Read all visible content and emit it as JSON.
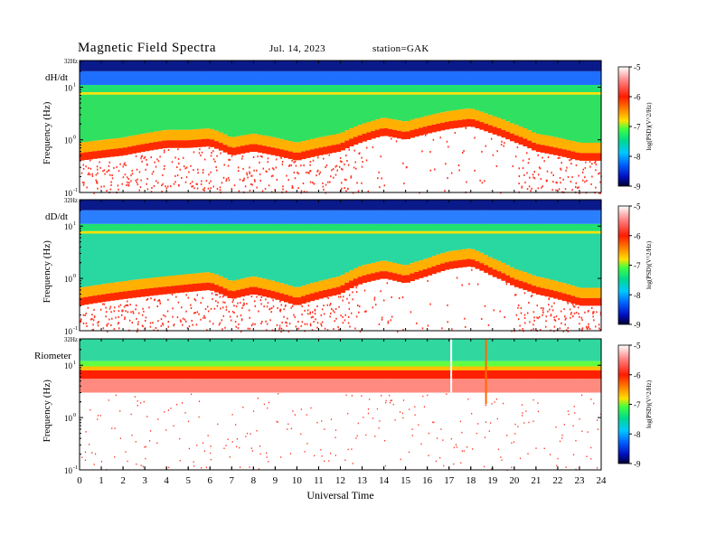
{
  "header": {
    "title": "Magnetic  Field  Spectra",
    "date": "Jul.  14, 2023",
    "station": "station=GAK"
  },
  "chart_data": [
    {
      "type": "heatmap",
      "panel_label": "dH/dt",
      "ylabel": "Frequency  (Hz)",
      "ytick_labels": [
        "32Hz",
        "10",
        "10",
        "10"
      ],
      "ytick_exponents": [
        "",
        "1",
        "0",
        "-1"
      ],
      "x_range": [
        0,
        24
      ],
      "y_range_hz": [
        0.1,
        32
      ],
      "y_scale": "log",
      "colorbar": {
        "ticks": [
          "-5",
          "-6",
          "-7",
          "-8",
          "-9"
        ],
        "label": "log(PSD)(V^2/Hz)",
        "range": [
          -9,
          -5
        ]
      },
      "dark_bands_hz": [
        [
          20,
          32
        ],
        [
          11,
          20
        ]
      ],
      "red_floor_profile_hz": {
        "x": [
          0,
          1,
          2,
          3,
          4,
          5,
          6,
          7,
          8,
          9,
          10,
          11,
          12,
          13,
          14,
          15,
          16,
          17,
          18,
          19,
          20,
          21,
          22,
          23,
          24
        ],
        "y": [
          0.4,
          0.45,
          0.5,
          0.6,
          0.7,
          0.7,
          0.75,
          0.5,
          0.6,
          0.5,
          0.4,
          0.5,
          0.6,
          0.9,
          1.2,
          1.0,
          1.3,
          1.6,
          1.8,
          1.3,
          0.9,
          0.6,
          0.5,
          0.4,
          0.4
        ]
      }
    },
    {
      "type": "heatmap",
      "panel_label": "dD/dt",
      "ylabel": "Frequency  (Hz)",
      "ytick_labels": [
        "32Hz",
        "10",
        "10",
        "10"
      ],
      "ytick_exponents": [
        "",
        "1",
        "0",
        "-1"
      ],
      "x_range": [
        0,
        24
      ],
      "y_range_hz": [
        0.1,
        32
      ],
      "y_scale": "log",
      "colorbar": {
        "ticks": [
          "-5",
          "-6",
          "-7",
          "-8",
          "-9"
        ],
        "label": "log(PSD)(V^2/Hz)",
        "range": [
          -9,
          -5
        ]
      },
      "dark_bands_hz": [
        [
          20,
          32
        ],
        [
          10,
          20
        ]
      ],
      "red_floor_profile_hz": {
        "x": [
          0,
          1,
          2,
          3,
          4,
          5,
          6,
          7,
          8,
          9,
          10,
          11,
          12,
          13,
          14,
          15,
          16,
          17,
          18,
          19,
          20,
          21,
          22,
          23,
          24
        ],
        "y": [
          0.3,
          0.35,
          0.4,
          0.45,
          0.5,
          0.55,
          0.6,
          0.4,
          0.5,
          0.4,
          0.3,
          0.4,
          0.5,
          0.8,
          1.0,
          0.8,
          1.1,
          1.5,
          1.7,
          1.1,
          0.7,
          0.5,
          0.4,
          0.3,
          0.3
        ]
      }
    },
    {
      "type": "heatmap",
      "panel_label": "Riometer",
      "ylabel": "Frequency  (Hz)",
      "ytick_labels": [
        "32Hz",
        "10",
        "10",
        "10"
      ],
      "ytick_exponents": [
        "",
        "1",
        "0",
        "-1"
      ],
      "x_range": [
        0,
        24
      ],
      "y_range_hz": [
        0.1,
        32
      ],
      "y_scale": "log",
      "colorbar": {
        "ticks": [
          "-5",
          "-6",
          "-7",
          "-8",
          "-9"
        ],
        "label": "log(PSD)(V^2/Hz)",
        "range": [
          -9,
          -5
        ]
      },
      "xlabel": "Universal  Time",
      "xticks": [
        "0",
        "1",
        "2",
        "3",
        "4",
        "5",
        "6",
        "7",
        "8",
        "9",
        "10",
        "11",
        "12",
        "13",
        "14",
        "15",
        "16",
        "17",
        "18",
        "19",
        "20",
        "21",
        "22",
        "23",
        "24"
      ],
      "spike_events_hours": [
        17.1,
        18.7
      ]
    }
  ]
}
